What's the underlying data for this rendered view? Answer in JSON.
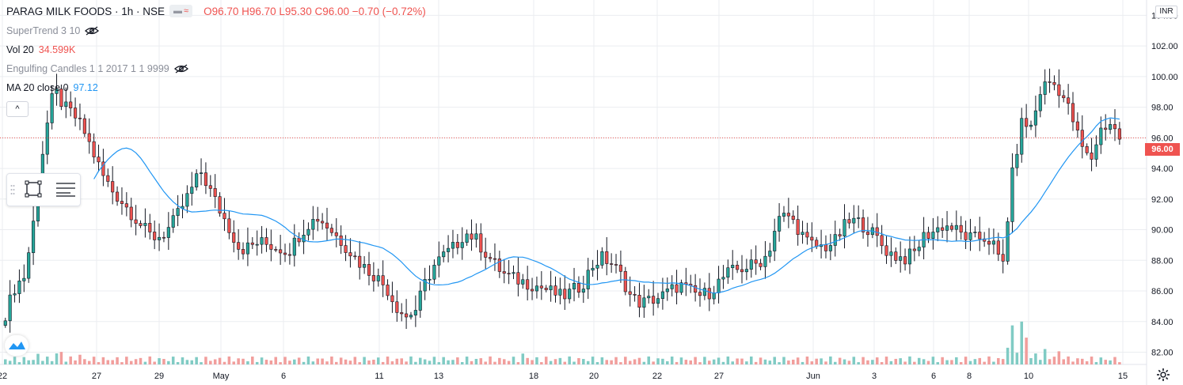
{
  "header": {
    "symbol": "PARAG MILK FOODS · 1h · NSE",
    "ohlc": "O96.70 H96.70 L95.30 C96.00 −0.70 (−0.72%)"
  },
  "indicators": [
    {
      "name": "SuperTrend 3 10",
      "value": ""
    },
    {
      "name": "Vol 20",
      "value": "34.599K"
    },
    {
      "name": "Engulfing Candles 1 1 2017 1 1 9999",
      "value": ""
    },
    {
      "name": "MA 20 close 0",
      "value": "97.12"
    }
  ],
  "currency": "INR",
  "last_price_label": "96.00",
  "colors": {
    "up": "#26a69a",
    "down": "#ef5350",
    "ma": "#2196f3",
    "volume_up": "#80cbc4",
    "volume_down": "#f19e9c",
    "grid": "#ebedf0"
  },
  "chart_data": {
    "type": "candlestick",
    "title": "PARAG MILK FOODS · 1h · NSE",
    "ylim": [
      81.2,
      105.0
    ],
    "y_ticks": [
      "82.00",
      "84.00",
      "86.00",
      "88.00",
      "90.00",
      "92.00",
      "94.00",
      "96.00",
      "98.00",
      "100.00",
      "102.00",
      "104.00"
    ],
    "x_tick_labels": [
      "22",
      "27",
      "29",
      "May",
      "6",
      "11",
      "13",
      "18",
      "20",
      "22",
      "27",
      "Jun",
      "3",
      "6",
      "8",
      "10",
      "15"
    ],
    "last_price": 96.0,
    "ma_period": 20,
    "series": [
      {
        "name": "price",
        "anchors_close": [
          84.5,
          86.3,
          87.0,
          91.0,
          96.0,
          99.2,
          98.0,
          97.5,
          96.5,
          95.0,
          93.5,
          92.5,
          91.8,
          91.0,
          90.2,
          89.5,
          89.6,
          90.3,
          91.4,
          92.6,
          93.8,
          92.5,
          91.2,
          90.0,
          88.7,
          88.9,
          89.2,
          89.0,
          88.8,
          88.6,
          89.6,
          90.4,
          90.8,
          90.2,
          89.5,
          88.8,
          88.0,
          87.4,
          86.9,
          86.2,
          85.0,
          84.3,
          84.8,
          86.6,
          87.8,
          88.4,
          88.9,
          89.8,
          89.5,
          88.6,
          87.8,
          87.1,
          86.8,
          86.6,
          86.4,
          86.2,
          85.9,
          85.6,
          86.0,
          86.4,
          87.6,
          88.2,
          87.8,
          87.0,
          85.6,
          85.2,
          85.4,
          85.6,
          86.0,
          86.4,
          86.0,
          85.7,
          85.9,
          86.6,
          87.2,
          87.4,
          87.6,
          87.8,
          88.4,
          90.6,
          91.0,
          90.2,
          89.2,
          88.9,
          88.9,
          89.3,
          90.4,
          90.6,
          90.2,
          89.6,
          88.7,
          88.3,
          88.1,
          88.5,
          89.6,
          89.9,
          90.3,
          90.1,
          89.6,
          89.4,
          89.5,
          89.2,
          87.4,
          93.5,
          97.0,
          96.7,
          99.3,
          99.7,
          99.0,
          97.6,
          95.6,
          94.4,
          96.5,
          97.0,
          96.0
        ]
      },
      {
        "name": "volume",
        "note": "relative heights",
        "values": [
          2,
          2,
          2,
          3,
          2,
          4,
          2,
          3,
          2,
          2,
          2,
          2,
          2,
          2,
          2,
          2,
          2,
          2,
          2,
          2,
          2,
          2,
          2,
          2,
          2,
          2,
          2,
          2,
          2,
          2,
          2,
          2,
          2,
          2,
          2,
          2,
          2,
          2,
          2,
          2,
          2,
          2,
          2,
          2,
          2,
          2,
          2,
          2,
          2,
          2,
          2,
          2,
          2,
          3,
          2,
          2,
          2,
          2,
          2,
          2,
          2,
          2,
          2,
          2,
          2,
          2,
          2,
          2,
          2,
          2,
          2,
          2,
          2,
          2,
          2,
          2,
          2,
          2,
          2,
          2,
          2,
          2,
          2,
          2,
          2,
          2,
          2,
          2,
          2,
          2,
          2,
          2,
          2,
          2,
          2,
          2,
          2,
          2,
          2,
          2,
          2,
          2,
          2,
          10,
          12,
          3,
          4,
          3,
          4,
          2,
          2,
          2,
          2,
          2,
          2
        ]
      }
    ]
  }
}
